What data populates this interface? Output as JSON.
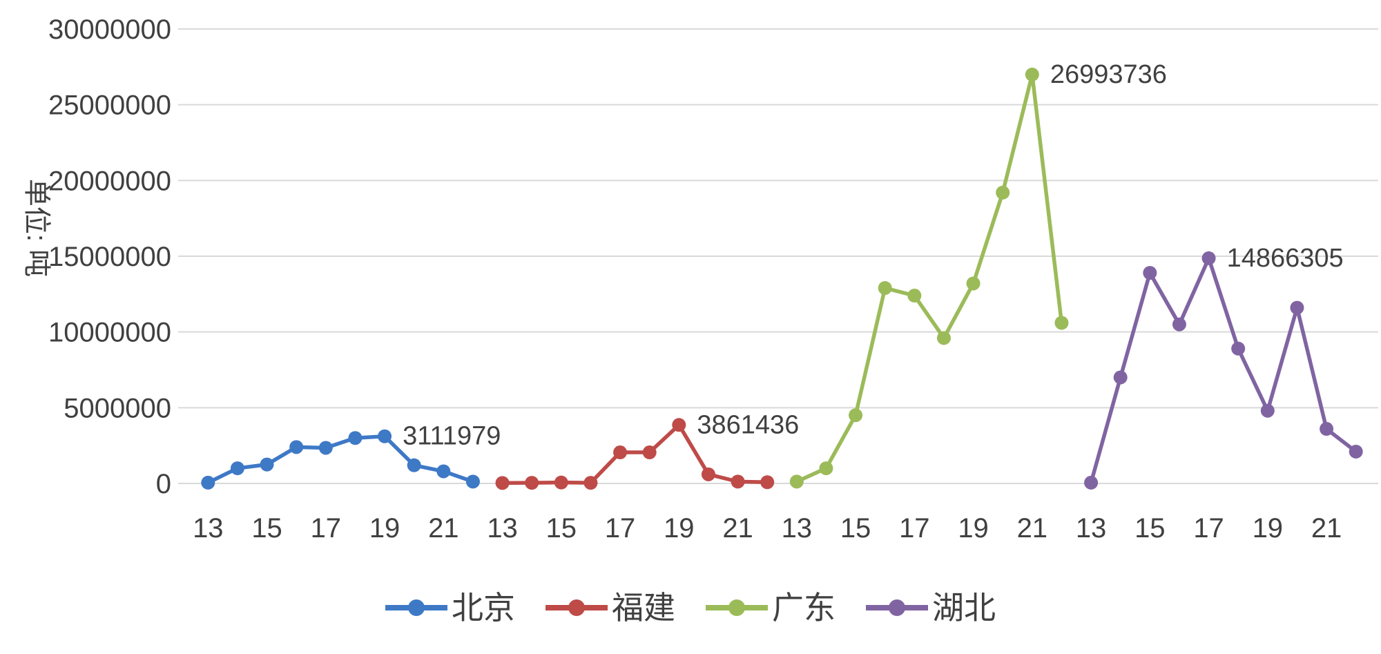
{
  "chart_data": {
    "type": "line",
    "title": "",
    "ylabel": "单位: 吨",
    "xlabel": "",
    "ylim": [
      0,
      30000000
    ],
    "yticks": [
      0,
      5000000,
      10000000,
      15000000,
      20000000,
      25000000,
      30000000
    ],
    "grid": true,
    "legend_position": "bottom",
    "x_years": [
      "13",
      "14",
      "15",
      "16",
      "17",
      "18",
      "19",
      "20",
      "21",
      "22"
    ],
    "x_tick_years": [
      "13",
      "15",
      "17",
      "19",
      "21"
    ],
    "colors": {
      "text": "#404040",
      "gridline": "#D9D9D9",
      "background": "#FFFFFF"
    },
    "series": [
      {
        "name": "北京",
        "color": "#3E79C6",
        "values": [
          50000,
          1000000,
          1250000,
          2400000,
          2350000,
          3000000,
          3111979,
          1200000,
          800000,
          120000
        ],
        "annotation": {
          "index": 6,
          "text": "3111979"
        }
      },
      {
        "name": "福建",
        "color": "#BE4B48",
        "values": [
          30000,
          40000,
          60000,
          40000,
          2050000,
          2050000,
          3861436,
          600000,
          120000,
          80000
        ],
        "annotation": {
          "index": 6,
          "text": "3861436"
        }
      },
      {
        "name": "广东",
        "color": "#9BBB59",
        "values": [
          120000,
          1000000,
          4500000,
          12900000,
          12400000,
          9600000,
          13200000,
          19200000,
          26993736,
          10600000
        ],
        "annotation": {
          "index": 8,
          "text": "26993736"
        }
      },
      {
        "name": "湖北",
        "color": "#8064A2",
        "values": [
          50000,
          7000000,
          13900000,
          10500000,
          14866305,
          8900000,
          4800000,
          11600000,
          3600000,
          2100000
        ],
        "annotation": {
          "index": 4,
          "text": "14866305"
        }
      }
    ]
  }
}
